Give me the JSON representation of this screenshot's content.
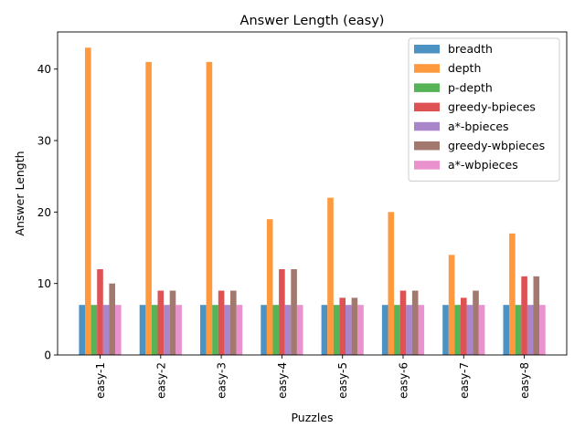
{
  "chart_data": {
    "type": "bar",
    "title": "Answer Length (easy)",
    "xlabel": "Puzzles",
    "ylabel": "Answer Length",
    "ylim": [
      0,
      45.2
    ],
    "yticks": [
      0,
      10,
      20,
      30,
      40
    ],
    "legend_position": "top-right",
    "categories": [
      "easy-1",
      "easy-2",
      "easy-3",
      "easy-4",
      "easy-5",
      "easy-6",
      "easy-7",
      "easy-8"
    ],
    "series": [
      {
        "name": "breadth",
        "color": "#1f77b4",
        "values": [
          7,
          7,
          7,
          7,
          7,
          7,
          7,
          7
        ]
      },
      {
        "name": "depth",
        "color": "#ff7f0e",
        "values": [
          43,
          41,
          41,
          19,
          22,
          20,
          14,
          17
        ]
      },
      {
        "name": "p-depth",
        "color": "#2ca02c",
        "values": [
          7,
          7,
          7,
          7,
          7,
          7,
          7,
          7
        ]
      },
      {
        "name": "greedy-bpieces",
        "color": "#d62728",
        "values": [
          12,
          9,
          9,
          12,
          8,
          9,
          8,
          11
        ]
      },
      {
        "name": "a*-bpieces",
        "color": "#9467bd",
        "values": [
          7,
          7,
          7,
          7,
          7,
          7,
          7,
          7
        ]
      },
      {
        "name": "greedy-wbpieces",
        "color": "#8c564b",
        "values": [
          10,
          9,
          9,
          12,
          8,
          9,
          9,
          11
        ]
      },
      {
        "name": "a*-wbpieces",
        "color": "#e377c2",
        "values": [
          7,
          7,
          7,
          7,
          7,
          7,
          7,
          7
        ]
      }
    ]
  }
}
